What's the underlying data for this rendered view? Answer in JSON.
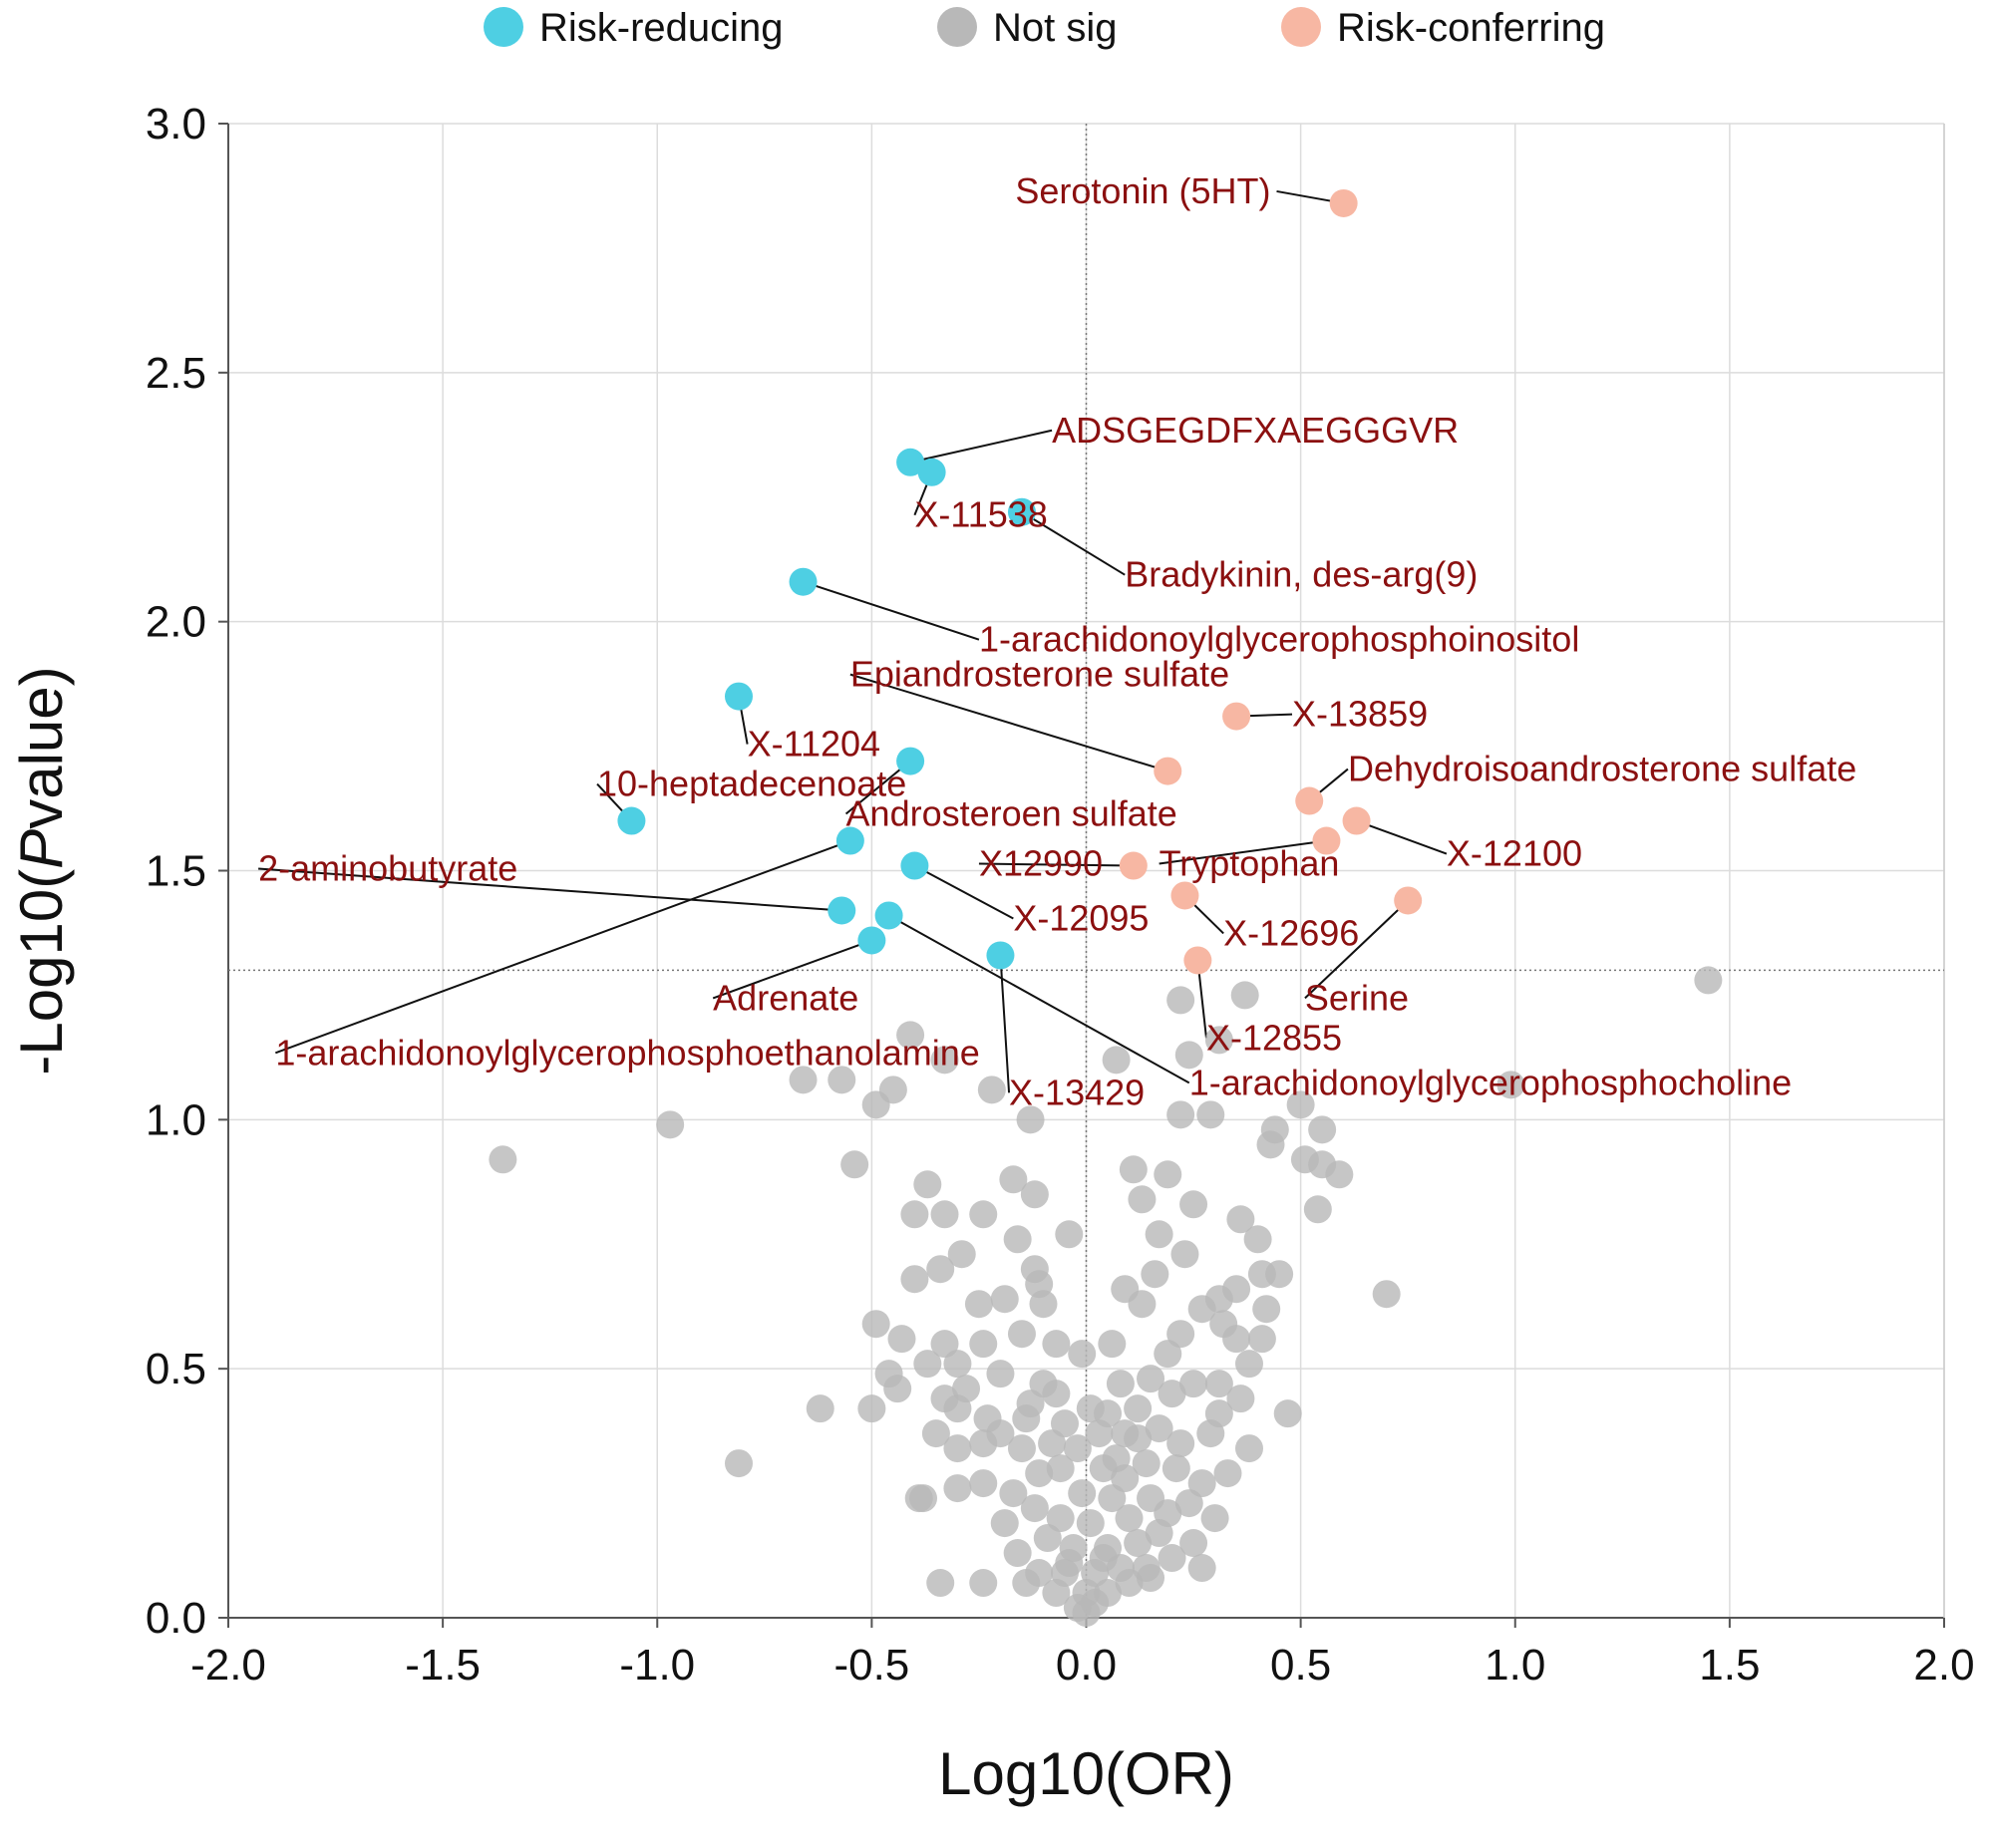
{
  "chart_data": {
    "type": "scatter",
    "title": "",
    "xlabel": "Log10(OR)",
    "ylabel_prefix": "-Log10(",
    "ylabel_italic": "P",
    "ylabel_suffix": "value)",
    "xlim": [
      -2.0,
      2.0
    ],
    "ylim": [
      0.0,
      3.0
    ],
    "xticks": [
      -2.0,
      -1.5,
      -1.0,
      -0.5,
      0.0,
      0.5,
      1.0,
      1.5,
      2.0
    ],
    "yticks": [
      0.0,
      0.5,
      1.0,
      1.5,
      2.0,
      2.5,
      3.0
    ],
    "xtick_labels": [
      "-2.0",
      "-1.5",
      "-1.0",
      "-0.5",
      "0.0",
      "0.5",
      "1.0",
      "1.5",
      "2.0"
    ],
    "ytick_labels": [
      "0.0",
      "0.5",
      "1.0",
      "1.5",
      "2.0",
      "2.5",
      "3.0"
    ],
    "grid": true,
    "significance_threshold_y": 1.3,
    "reference_x": 0.0,
    "legend_position": "top",
    "colors": {
      "risk_reducing": "#4ecfe3",
      "not_sig": "#b8b8b8",
      "risk_conferring": "#f7b7a3",
      "annotation_text": "#8b1010",
      "grid": "#dcdcdc",
      "axis": "#555555"
    },
    "legend": [
      {
        "label": "Risk-reducing",
        "key": "risk_reducing"
      },
      {
        "label": "Not sig",
        "key": "not_sig"
      },
      {
        "label": "Risk-conferring",
        "key": "risk_conferring"
      }
    ],
    "series": [
      {
        "name": "Risk-reducing",
        "key": "risk_reducing",
        "points": [
          {
            "x": -0.41,
            "y": 2.32,
            "label": "ADSGEGDFXAEGGGVR",
            "lx": -0.08,
            "ly": 2.36,
            "anchor": "start"
          },
          {
            "x": -0.36,
            "y": 2.3,
            "label": "X-11538",
            "lx": -0.4,
            "ly": 2.19,
            "anchor": "start"
          },
          {
            "x": -0.15,
            "y": 2.22,
            "label": "Bradykinin, des-arg(9)",
            "lx": 0.09,
            "ly": 2.07,
            "anchor": "start"
          },
          {
            "x": -0.66,
            "y": 2.08,
            "label": "1-arachidonoylglycerophosphoinositol",
            "lx": -0.25,
            "ly": 1.94,
            "anchor": "start"
          },
          {
            "x": -0.81,
            "y": 1.85,
            "label": "X-11204",
            "lx": -0.79,
            "ly": 1.73,
            "anchor": "start"
          },
          {
            "x": -1.06,
            "y": 1.6,
            "label": "10-heptadecenoate",
            "lx": -1.14,
            "ly": 1.65,
            "anchor": "start"
          },
          {
            "x": -0.41,
            "y": 1.72,
            "label": "Androsteroen  sulfate",
            "lx": -0.56,
            "ly": 1.59,
            "anchor": "start"
          },
          {
            "x": -0.4,
            "y": 1.51,
            "label": "X-12095",
            "lx": -0.17,
            "ly": 1.38,
            "anchor": "start"
          },
          {
            "x": -0.55,
            "y": 1.56,
            "label": "1-arachidonoylglycerophosphoethanolamine",
            "lx": -1.89,
            "ly": 1.11,
            "anchor": "start"
          },
          {
            "x": -0.57,
            "y": 1.42,
            "label": "2-aminobutyrate",
            "lx": -1.93,
            "ly": 1.48,
            "anchor": "start"
          },
          {
            "x": -0.5,
            "y": 1.36,
            "label": "Adrenate",
            "lx": -0.87,
            "ly": 1.22,
            "anchor": "start"
          },
          {
            "x": -0.46,
            "y": 1.41,
            "label": "1-arachidonoylglycerophosphocholine",
            "lx": 0.24,
            "ly": 1.05,
            "anchor": "start"
          },
          {
            "x": -0.2,
            "y": 1.33,
            "label": "X-13429",
            "lx": -0.18,
            "ly": 1.03,
            "anchor": "start"
          }
        ]
      },
      {
        "name": "Risk-conferring",
        "key": "risk_conferring",
        "points": [
          {
            "x": 0.6,
            "y": 2.84,
            "label": "Serotonin (5HT)",
            "lx": 0.43,
            "ly": 2.84,
            "anchor": "end"
          },
          {
            "x": 0.19,
            "y": 1.7,
            "label": "Epiandrosterone sulfate",
            "lx": -0.55,
            "ly": 1.87,
            "anchor": "start"
          },
          {
            "x": 0.35,
            "y": 1.81,
            "label": "X-13859",
            "lx": 0.48,
            "ly": 1.79,
            "anchor": "start"
          },
          {
            "x": 0.52,
            "y": 1.64,
            "label": "Dehydroisoandrosterone sulfate",
            "lx": 0.61,
            "ly": 1.68,
            "anchor": "start"
          },
          {
            "x": 0.63,
            "y": 1.6,
            "label": "X-12100",
            "lx": 0.84,
            "ly": 1.51,
            "anchor": "start"
          },
          {
            "x": 0.56,
            "y": 1.56,
            "label": "Tryptophan",
            "lx": 0.17,
            "ly": 1.49,
            "anchor": "start"
          },
          {
            "x": 0.11,
            "y": 1.51,
            "label": "X12990",
            "lx": -0.25,
            "ly": 1.49,
            "anchor": "start"
          },
          {
            "x": 0.23,
            "y": 1.45,
            "label": "X-12696",
            "lx": 0.32,
            "ly": 1.35,
            "anchor": "start"
          },
          {
            "x": 0.75,
            "y": 1.44,
            "label": "Serine",
            "lx": 0.51,
            "ly": 1.22,
            "anchor": "start"
          },
          {
            "x": 0.26,
            "y": 1.32,
            "label": "X-12855",
            "lx": 0.28,
            "ly": 1.14,
            "anchor": "start"
          }
        ]
      },
      {
        "name": "Not sig",
        "key": "not_sig",
        "points": [
          {
            "x": 1.45,
            "y": 1.28
          },
          {
            "x": 0.99,
            "y": 1.07
          },
          {
            "x": -1.36,
            "y": 0.92
          },
          {
            "x": -0.97,
            "y": 0.99
          },
          {
            "x": -0.81,
            "y": 0.31
          },
          {
            "x": 0.7,
            "y": 0.65
          },
          {
            "x": -0.66,
            "y": 1.08
          },
          {
            "x": -0.57,
            "y": 1.08
          },
          {
            "x": -0.54,
            "y": 0.91
          },
          {
            "x": -0.49,
            "y": 1.03
          },
          {
            "x": -0.45,
            "y": 1.06
          },
          {
            "x": -0.41,
            "y": 1.17
          },
          {
            "x": -0.33,
            "y": 1.12
          },
          {
            "x": -0.22,
            "y": 1.06
          },
          {
            "x": -0.13,
            "y": 1.0
          },
          {
            "x": 0.07,
            "y": 1.12
          },
          {
            "x": 0.22,
            "y": 1.24
          },
          {
            "x": 0.24,
            "y": 1.13
          },
          {
            "x": 0.37,
            "y": 1.25
          },
          {
            "x": 0.31,
            "y": 1.16
          },
          {
            "x": 0.22,
            "y": 1.01
          },
          {
            "x": 0.29,
            "y": 1.01
          },
          {
            "x": 0.44,
            "y": 0.98
          },
          {
            "x": 0.5,
            "y": 1.03
          },
          {
            "x": 0.55,
            "y": 0.98
          },
          {
            "x": 0.43,
            "y": 0.95
          },
          {
            "x": 0.51,
            "y": 0.92
          },
          {
            "x": 0.55,
            "y": 0.91
          },
          {
            "x": 0.59,
            "y": 0.89
          },
          {
            "x": 0.54,
            "y": 0.82
          },
          {
            "x": 0.11,
            "y": 0.9
          },
          {
            "x": 0.19,
            "y": 0.89
          },
          {
            "x": -0.17,
            "y": 0.88
          },
          {
            "x": -0.37,
            "y": 0.87
          },
          {
            "x": -0.4,
            "y": 0.81
          },
          {
            "x": -0.33,
            "y": 0.81
          },
          {
            "x": -0.24,
            "y": 0.81
          },
          {
            "x": -0.12,
            "y": 0.85
          },
          {
            "x": -0.04,
            "y": 0.77
          },
          {
            "x": -0.16,
            "y": 0.76
          },
          {
            "x": 0.13,
            "y": 0.84
          },
          {
            "x": 0.25,
            "y": 0.83
          },
          {
            "x": 0.36,
            "y": 0.8
          },
          {
            "x": 0.4,
            "y": 0.76
          },
          {
            "x": 0.17,
            "y": 0.77
          },
          {
            "x": 0.23,
            "y": 0.73
          },
          {
            "x": -0.29,
            "y": 0.73
          },
          {
            "x": -0.34,
            "y": 0.7
          },
          {
            "x": -0.4,
            "y": 0.68
          },
          {
            "x": -0.12,
            "y": 0.7
          },
          {
            "x": -0.11,
            "y": 0.67
          },
          {
            "x": 0.09,
            "y": 0.66
          },
          {
            "x": 0.16,
            "y": 0.69
          },
          {
            "x": 0.31,
            "y": 0.64
          },
          {
            "x": 0.35,
            "y": 0.66
          },
          {
            "x": 0.41,
            "y": 0.69
          },
          {
            "x": 0.45,
            "y": 0.69
          },
          {
            "x": -0.25,
            "y": 0.63
          },
          {
            "x": -0.19,
            "y": 0.64
          },
          {
            "x": -0.1,
            "y": 0.63
          },
          {
            "x": 0.13,
            "y": 0.63
          },
          {
            "x": 0.27,
            "y": 0.62
          },
          {
            "x": -0.49,
            "y": 0.59
          },
          {
            "x": -0.43,
            "y": 0.56
          },
          {
            "x": -0.33,
            "y": 0.55
          },
          {
            "x": -0.24,
            "y": 0.55
          },
          {
            "x": -0.15,
            "y": 0.57
          },
          {
            "x": 0.06,
            "y": 0.55
          },
          {
            "x": 0.22,
            "y": 0.57
          },
          {
            "x": 0.32,
            "y": 0.59
          },
          {
            "x": 0.35,
            "y": 0.56
          },
          {
            "x": 0.41,
            "y": 0.56
          },
          {
            "x": -0.07,
            "y": 0.55
          },
          {
            "x": -0.01,
            "y": 0.53
          },
          {
            "x": -0.37,
            "y": 0.51
          },
          {
            "x": -0.3,
            "y": 0.51
          },
          {
            "x": -0.46,
            "y": 0.49
          },
          {
            "x": -0.2,
            "y": 0.49
          },
          {
            "x": 0.38,
            "y": 0.51
          },
          {
            "x": 0.19,
            "y": 0.53
          },
          {
            "x": -0.1,
            "y": 0.47
          },
          {
            "x": -0.62,
            "y": 0.42
          },
          {
            "x": -0.5,
            "y": 0.42
          },
          {
            "x": -0.44,
            "y": 0.46
          },
          {
            "x": -0.33,
            "y": 0.44
          },
          {
            "x": -0.3,
            "y": 0.42
          },
          {
            "x": -0.23,
            "y": 0.4
          },
          {
            "x": -0.13,
            "y": 0.43
          },
          {
            "x": -0.07,
            "y": 0.45
          },
          {
            "x": 0.08,
            "y": 0.47
          },
          {
            "x": 0.15,
            "y": 0.48
          },
          {
            "x": 0.2,
            "y": 0.45
          },
          {
            "x": 0.25,
            "y": 0.47
          },
          {
            "x": 0.31,
            "y": 0.47
          },
          {
            "x": 0.31,
            "y": 0.41
          },
          {
            "x": 0.47,
            "y": 0.41
          },
          {
            "x": -0.2,
            "y": 0.37
          },
          {
            "x": -0.14,
            "y": 0.4
          },
          {
            "x": 0.05,
            "y": 0.41
          },
          {
            "x": 0.12,
            "y": 0.42
          },
          {
            "x": 0.29,
            "y": 0.37
          },
          {
            "x": 0.38,
            "y": 0.34
          },
          {
            "x": -0.24,
            "y": 0.35
          },
          {
            "x": -0.15,
            "y": 0.34
          },
          {
            "x": -0.08,
            "y": 0.35
          },
          {
            "x": -0.02,
            "y": 0.34
          },
          {
            "x": 0.03,
            "y": 0.37
          },
          {
            "x": 0.09,
            "y": 0.37
          },
          {
            "x": 0.17,
            "y": 0.38
          },
          {
            "x": 0.22,
            "y": 0.35
          },
          {
            "x": -0.06,
            "y": 0.3
          },
          {
            "x": -0.11,
            "y": 0.29
          },
          {
            "x": 0.04,
            "y": 0.3
          },
          {
            "x": 0.09,
            "y": 0.28
          },
          {
            "x": 0.14,
            "y": 0.31
          },
          {
            "x": 0.21,
            "y": 0.3
          },
          {
            "x": 0.27,
            "y": 0.27
          },
          {
            "x": -0.3,
            "y": 0.26
          },
          {
            "x": -0.24,
            "y": 0.27
          },
          {
            "x": -0.17,
            "y": 0.25
          },
          {
            "x": -0.38,
            "y": 0.24
          },
          {
            "x": 0.06,
            "y": 0.24
          },
          {
            "x": 0.15,
            "y": 0.24
          },
          {
            "x": 0.24,
            "y": 0.23
          },
          {
            "x": -0.12,
            "y": 0.22
          },
          {
            "x": -0.06,
            "y": 0.2
          },
          {
            "x": 0.01,
            "y": 0.19
          },
          {
            "x": 0.1,
            "y": 0.2
          },
          {
            "x": 0.19,
            "y": 0.21
          },
          {
            "x": -0.19,
            "y": 0.19
          },
          {
            "x": 0.17,
            "y": 0.17
          },
          {
            "x": -0.09,
            "y": 0.16
          },
          {
            "x": -0.03,
            "y": 0.14
          },
          {
            "x": 0.05,
            "y": 0.14
          },
          {
            "x": 0.12,
            "y": 0.15
          },
          {
            "x": 0.25,
            "y": 0.15
          },
          {
            "x": -0.16,
            "y": 0.13
          },
          {
            "x": 0.2,
            "y": 0.12
          },
          {
            "x": -0.05,
            "y": 0.09
          },
          {
            "x": 0.02,
            "y": 0.09
          },
          {
            "x": 0.08,
            "y": 0.1
          },
          {
            "x": 0.14,
            "y": 0.1
          },
          {
            "x": -0.11,
            "y": 0.09
          },
          {
            "x": -0.34,
            "y": 0.07
          },
          {
            "x": -0.24,
            "y": 0.07
          },
          {
            "x": -0.14,
            "y": 0.07
          },
          {
            "x": -0.07,
            "y": 0.05
          },
          {
            "x": 0.0,
            "y": 0.05
          },
          {
            "x": 0.05,
            "y": 0.05
          },
          {
            "x": 0.1,
            "y": 0.07
          },
          {
            "x": 0.15,
            "y": 0.08
          },
          {
            "x": -0.02,
            "y": 0.02
          },
          {
            "x": 0.02,
            "y": 0.03
          },
          {
            "x": 0.0,
            "y": 0.01
          },
          {
            "x": -0.04,
            "y": 0.11
          },
          {
            "x": 0.04,
            "y": 0.12
          },
          {
            "x": 0.27,
            "y": 0.1
          },
          {
            "x": 0.3,
            "y": 0.2
          },
          {
            "x": 0.33,
            "y": 0.29
          },
          {
            "x": 0.36,
            "y": 0.44
          },
          {
            "x": -0.39,
            "y": 0.24
          },
          {
            "x": -0.35,
            "y": 0.37
          },
          {
            "x": -0.28,
            "y": 0.46
          },
          {
            "x": -0.3,
            "y": 0.34
          },
          {
            "x": 0.42,
            "y": 0.62
          },
          {
            "x": -0.01,
            "y": 0.25
          },
          {
            "x": 0.07,
            "y": 0.32
          },
          {
            "x": 0.12,
            "y": 0.36
          },
          {
            "x": -0.05,
            "y": 0.39
          },
          {
            "x": 0.01,
            "y": 0.42
          }
        ]
      }
    ]
  }
}
